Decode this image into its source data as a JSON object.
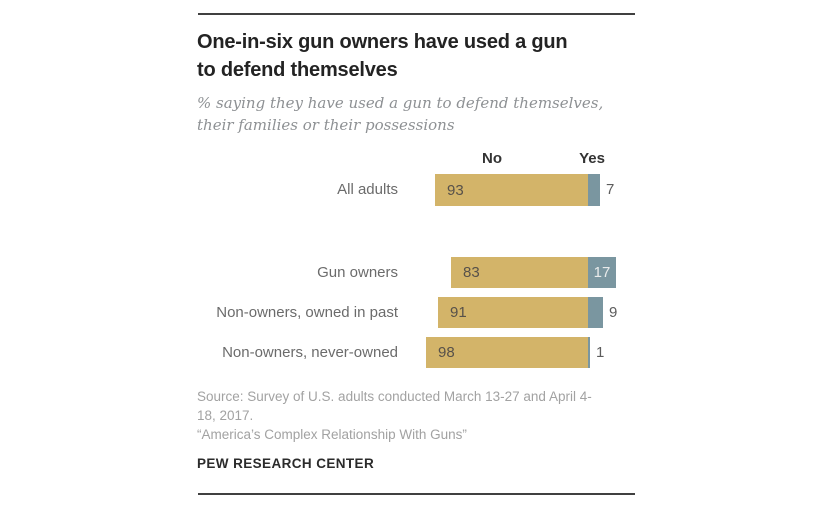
{
  "card": {
    "title_lines": [
      "One-in-six gun owners have used a gun",
      "to defend themselves"
    ],
    "subtitle_lines": [
      "% saying they have used a gun to defend themselves,",
      "their families or their possessions"
    ]
  },
  "chart_data": {
    "type": "bar",
    "orientation": "horizontal",
    "diverging": true,
    "column_headers": [
      "No",
      "Yes"
    ],
    "categories": [
      "All adults",
      "Gun owners",
      "Non-owners, owned in past",
      "Non-owners, never-owned"
    ],
    "series": [
      {
        "name": "No",
        "color": "#d3b469",
        "values": [
          93,
          83,
          91,
          98
        ]
      },
      {
        "name": "Yes",
        "color": "#7a96a0",
        "values": [
          7,
          17,
          9,
          1
        ]
      }
    ],
    "xlim": [
      0,
      100
    ],
    "value_labels": "shown",
    "grid": false,
    "legend_position": "column-headers-above-bars",
    "group_gap_after_first_row": true
  },
  "footer": {
    "source_lines": [
      "Source: Survey of U.S. adults conducted March 13-27 and April 4-",
      "18, 2017."
    ],
    "report_title": "“America’s Complex Relationship With Guns”",
    "brand": "PEW RESEARCH CENTER"
  },
  "colors": {
    "no_bar": "#d3b469",
    "yes_bar": "#7a96a0",
    "rule": "#404040",
    "title_text": "#232323",
    "subtitle_text": "#8e9194",
    "category_label_text": "#6b6b6b",
    "value_text_on_no": "#57514a",
    "value_text_on_yes": "#e9ebeb",
    "value_text_outside": "#5c5c5c",
    "footer_text": "#a2a2a2",
    "brand_text": "#2b2b2b"
  }
}
